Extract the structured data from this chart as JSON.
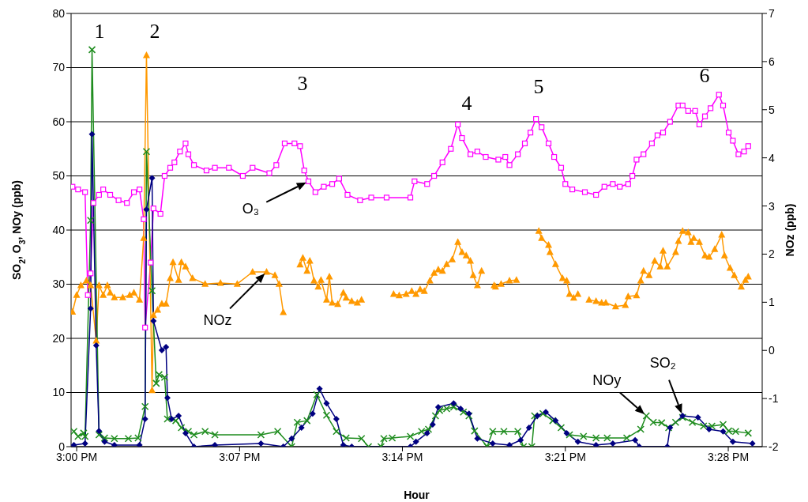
{
  "chart_data": {
    "type": "line",
    "xlabel": "Hour",
    "ylabel": "SO$_{2}$, O$_{3}$, NOy (ppb)",
    "y2label": "NOz (ppb)",
    "xlim": [
      14.996,
      15.491
    ],
    "xticks": [
      {
        "value": 15,
        "label": "3:00 PM"
      },
      {
        "value": 15.1167,
        "label": "3:07 PM"
      },
      {
        "value": 15.2333,
        "label": "3:14 PM"
      },
      {
        "value": 15.35,
        "label": "3:21 PM"
      },
      {
        "value": 15.4667,
        "label": "3:28 PM"
      }
    ],
    "ylim": [
      0,
      80
    ],
    "yticks": [
      0,
      10,
      20,
      30,
      40,
      50,
      60,
      70,
      80
    ],
    "y2lim": [
      -2,
      7
    ],
    "y2ticks": [
      -2,
      -1,
      0,
      1,
      2,
      3,
      4,
      5,
      6,
      7
    ],
    "grid": "y",
    "series": [
      {
        "name": "O₃",
        "color": "#ff00ff",
        "marker": "square",
        "x": [
          14.997,
          15.001,
          15.006,
          15.008,
          15.01,
          15.012,
          15.016,
          15.019,
          15.024,
          15.03,
          15.036,
          15.041,
          15.045,
          15.048,
          15.049,
          15.053,
          15.055,
          15.06,
          15.063,
          15.067,
          15.07,
          15.074,
          15.078,
          15.08,
          15.084,
          15.093,
          15.099,
          15.109,
          15.119,
          15.126,
          15.138,
          15.143,
          15.149,
          15.156,
          15.16,
          15.163,
          15.166,
          15.171,
          15.177,
          15.183,
          15.188,
          15.194,
          15.203,
          15.211,
          15.222,
          15.239,
          15.242,
          15.251,
          15.256,
          15.262,
          15.268,
          15.273,
          15.276,
          15.282,
          15.287,
          15.293,
          15.302,
          15.307,
          15.31,
          15.316,
          15.321,
          15.325,
          15.329,
          15.333,
          15.338,
          15.342,
          15.347,
          15.35,
          15.355,
          15.364,
          15.372,
          15.378,
          15.384,
          15.389,
          15.395,
          15.398,
          15.401,
          15.406,
          15.412,
          15.416,
          15.42,
          15.425,
          15.431,
          15.434,
          15.438,
          15.443,
          15.446,
          15.45,
          15.454,
          15.46,
          15.463,
          15.467,
          15.47,
          15.474,
          15.478,
          15.481
        ],
        "values": [
          48,
          47.5,
          47,
          28,
          32,
          45,
          46.5,
          47.5,
          46.5,
          45.5,
          45,
          47,
          47.5,
          42,
          22,
          34,
          44,
          43,
          50,
          51.5,
          52.5,
          54.5,
          56,
          54,
          52,
          51,
          51.5,
          51.5,
          50,
          51.5,
          50.5,
          52,
          56,
          56,
          55.5,
          51,
          49,
          47,
          48,
          48.5,
          49.5,
          46.5,
          45.5,
          46,
          46,
          46,
          49,
          48.5,
          50,
          52.5,
          55,
          59.5,
          57,
          54,
          54.5,
          53.5,
          53,
          53.5,
          52,
          54,
          56,
          58,
          60.5,
          59,
          56,
          53.5,
          51.5,
          48.5,
          47.5,
          47,
          46.5,
          48,
          48.5,
          48,
          48.5,
          50,
          53,
          54,
          56,
          57.5,
          58,
          60,
          63,
          63,
          62,
          62,
          59.5,
          61,
          62.5,
          65,
          63,
          58,
          56.5,
          54,
          54.5,
          55.5
        ]
      },
      {
        "name": "NOz",
        "color": "#ff9900",
        "marker": "triangle",
        "axis": "y2",
        "x": [
          14.997,
          15.0,
          15.003,
          15.007,
          15.01,
          15.014,
          15.016,
          15.019,
          15.022,
          15.024,
          15.027,
          15.033,
          15.038,
          15.041,
          15.045,
          15.048,
          15.05,
          15.054,
          15.055,
          15.058,
          15.061,
          15.064,
          15.067,
          15.069,
          15.073,
          15.075,
          15.078,
          15.083,
          15.092,
          15.103,
          15.115,
          15.126,
          15.136,
          15.142,
          15.145,
          15.148,
          15.151,
          15.16,
          15.162,
          15.165,
          15.167,
          15.17,
          15.173,
          15.175,
          15.179,
          15.181,
          15.183,
          15.187,
          15.191,
          15.193,
          15.197,
          15.201,
          15.204,
          15.215,
          15.227,
          15.231,
          15.236,
          15.24,
          15.243,
          15.246,
          15.249,
          15.253,
          15.256,
          15.259,
          15.262,
          15.265,
          15.269,
          15.273,
          15.276,
          15.279,
          15.282,
          15.284,
          15.287,
          15.29,
          15.294,
          15.299,
          15.3,
          15.304,
          15.31,
          15.315,
          15.323,
          15.331,
          15.333,
          15.338,
          15.339,
          15.343,
          15.348,
          15.351,
          15.353,
          15.356,
          15.359,
          15.363,
          15.367,
          15.372,
          15.376,
          15.379,
          15.386,
          15.393,
          15.395,
          15.401,
          15.404,
          15.406,
          15.41,
          15.414,
          15.418,
          15.42,
          15.423,
          15.429,
          15.431,
          15.434,
          15.438,
          15.44,
          15.442,
          15.446,
          15.45,
          15.453,
          15.457,
          15.462,
          15.464,
          15.468,
          15.471,
          15.476,
          15.479,
          15.481
        ],
        "values": [
          0.8,
          1.15,
          1.35,
          1.45,
          1.35,
          0.2,
          1.35,
          1.15,
          1.35,
          1.2,
          1.1,
          1.1,
          1.15,
          1.2,
          1.05,
          2.33,
          6.13,
          -0.83,
          0.73,
          0.84,
          0.97,
          0.97,
          1.5,
          1.83,
          1.46,
          1.83,
          1.74,
          1.5,
          1.38,
          1.4,
          1.38,
          1.63,
          1.63,
          1.56,
          1.38,
          0.79,
          null,
          1.78,
          1.92,
          1.65,
          1.86,
          1.45,
          1.32,
          1.46,
          1.05,
          1.53,
          0.99,
          0.96,
          1.2,
          1.09,
          1.02,
          0.99,
          1.05,
          null,
          1.17,
          1.14,
          1.17,
          1.23,
          1.17,
          1.27,
          1.23,
          1.45,
          1.61,
          1.68,
          1.65,
          1.79,
          1.89,
          2.25,
          2.04,
          1.97,
          1.86,
          1.56,
          1.35,
          1.65,
          null,
          1.35,
          1.32,
          1.38,
          1.45,
          1.46,
          null,
          2.48,
          2.33,
          2.19,
          2.04,
          1.79,
          1.5,
          1.45,
          1.17,
          1.09,
          1.17,
          null,
          1.05,
          1.02,
          0.99,
          0.99,
          0.91,
          0.94,
          1.12,
          1.14,
          1.45,
          1.65,
          1.56,
          1.86,
          1.74,
          2.07,
          1.74,
          2.04,
          2.27,
          2.48,
          2.45,
          2.25,
          2.33,
          2.25,
          1.97,
          1.94,
          2.1,
          2.4,
          1.97,
          1.71,
          1.56,
          1.32,
          1.46,
          1.53
        ]
      },
      {
        "name": "NOy",
        "color": "#1e8c1e",
        "marker": "cross",
        "x": [
          14.998,
          15.001,
          15.005,
          15.006,
          15.01,
          15.011,
          15.016,
          15.02,
          15.027,
          15.037,
          15.044,
          15.049,
          15.05,
          15.054,
          15.057,
          15.059,
          15.063,
          15.065,
          15.071,
          15.075,
          15.08,
          15.084,
          15.092,
          15.099,
          15.132,
          15.144,
          15.154,
          15.158,
          15.165,
          15.172,
          15.179,
          15.186,
          15.193,
          15.204,
          15.209,
          15.218,
          15.22,
          15.226,
          15.239,
          15.247,
          15.252,
          15.257,
          15.26,
          15.265,
          15.27,
          15.277,
          15.281,
          15.285,
          15.294,
          15.298,
          15.306,
          15.316,
          15.32,
          15.326,
          15.328,
          15.334,
          15.341,
          15.347,
          15.353,
          15.363,
          15.372,
          15.38,
          15.394,
          15.404,
          15.408,
          15.413,
          15.419,
          15.424,
          15.429,
          15.434,
          15.441,
          15.449,
          15.455,
          15.463,
          15.467,
          15.472,
          15.481
        ],
        "values": [
          2.8,
          1.9,
          2.5,
          1.9,
          41.8,
          73.3,
          2.2,
          1.6,
          1.5,
          1.5,
          1.6,
          7.4,
          54.5,
          28.8,
          11.7,
          13.3,
          12.8,
          5.1,
          4.8,
          3.5,
          2.8,
          2.2,
          2.8,
          2.2,
          2.2,
          2.8,
          0,
          4.5,
          4.8,
          9.6,
          5.8,
          2.8,
          1.6,
          1.5,
          0,
          0,
          1.5,
          1.6,
          1.9,
          2.8,
          3.2,
          5.7,
          6.7,
          7,
          7.3,
          6.4,
          5.7,
          2.9,
          0,
          2.8,
          2.8,
          2.8,
          0,
          0,
          5.7,
          6.1,
          4.8,
          3.5,
          2.2,
          1.9,
          1.6,
          1.6,
          1.6,
          3.2,
          5.7,
          4.5,
          4.4,
          3.5,
          4.5,
          5.4,
          4.5,
          3.8,
          3.8,
          4.1,
          2.9,
          2.8,
          2.5
        ]
      },
      {
        "name": "SO₂",
        "color": "#000080",
        "marker": "diamond",
        "x": [
          14.998,
          15.006,
          15.01,
          15.011,
          15.014,
          15.016,
          15.02,
          15.027,
          15.045,
          15.049,
          15.05,
          15.054,
          15.055,
          15.061,
          15.064,
          15.065,
          15.068,
          15.073,
          15.078,
          15.084,
          15.099,
          15.132,
          15.148,
          15.154,
          15.161,
          15.169,
          15.174,
          15.179,
          15.186,
          15.191,
          15.197,
          15.239,
          15.243,
          15.251,
          15.255,
          15.259,
          15.27,
          15.275,
          15.281,
          15.287,
          15.298,
          15.31,
          15.318,
          15.324,
          15.33,
          15.336,
          15.343,
          15.351,
          15.359,
          15.372,
          15.384,
          15.4,
          15.403,
          15.423,
          15.425,
          15.434,
          15.445,
          15.453,
          15.463,
          15.47,
          15.484
        ],
        "values": [
          0.3,
          0.6,
          25.5,
          57.7,
          18.7,
          2.9,
          0.9,
          0.3,
          0.3,
          5.1,
          43.8,
          49.6,
          23.2,
          17.8,
          18.4,
          9,
          5.1,
          5.7,
          2.5,
          0,
          0.3,
          0.6,
          0,
          1.5,
          3.5,
          6.1,
          10.7,
          8,
          5.1,
          0.3,
          0,
          0,
          0.9,
          2.5,
          4.1,
          7.3,
          8,
          7,
          6.1,
          1.5,
          0.6,
          0.3,
          1.2,
          3.5,
          5.7,
          6.4,
          4.8,
          2.5,
          0.9,
          0.3,
          0.6,
          1.2,
          0,
          0,
          3.5,
          5.7,
          5.4,
          3.2,
          2.8,
          0.9,
          0.6
        ]
      }
    ],
    "annotations": [
      "1",
      "2",
      "3",
      "4",
      "5",
      "6"
    ]
  }
}
